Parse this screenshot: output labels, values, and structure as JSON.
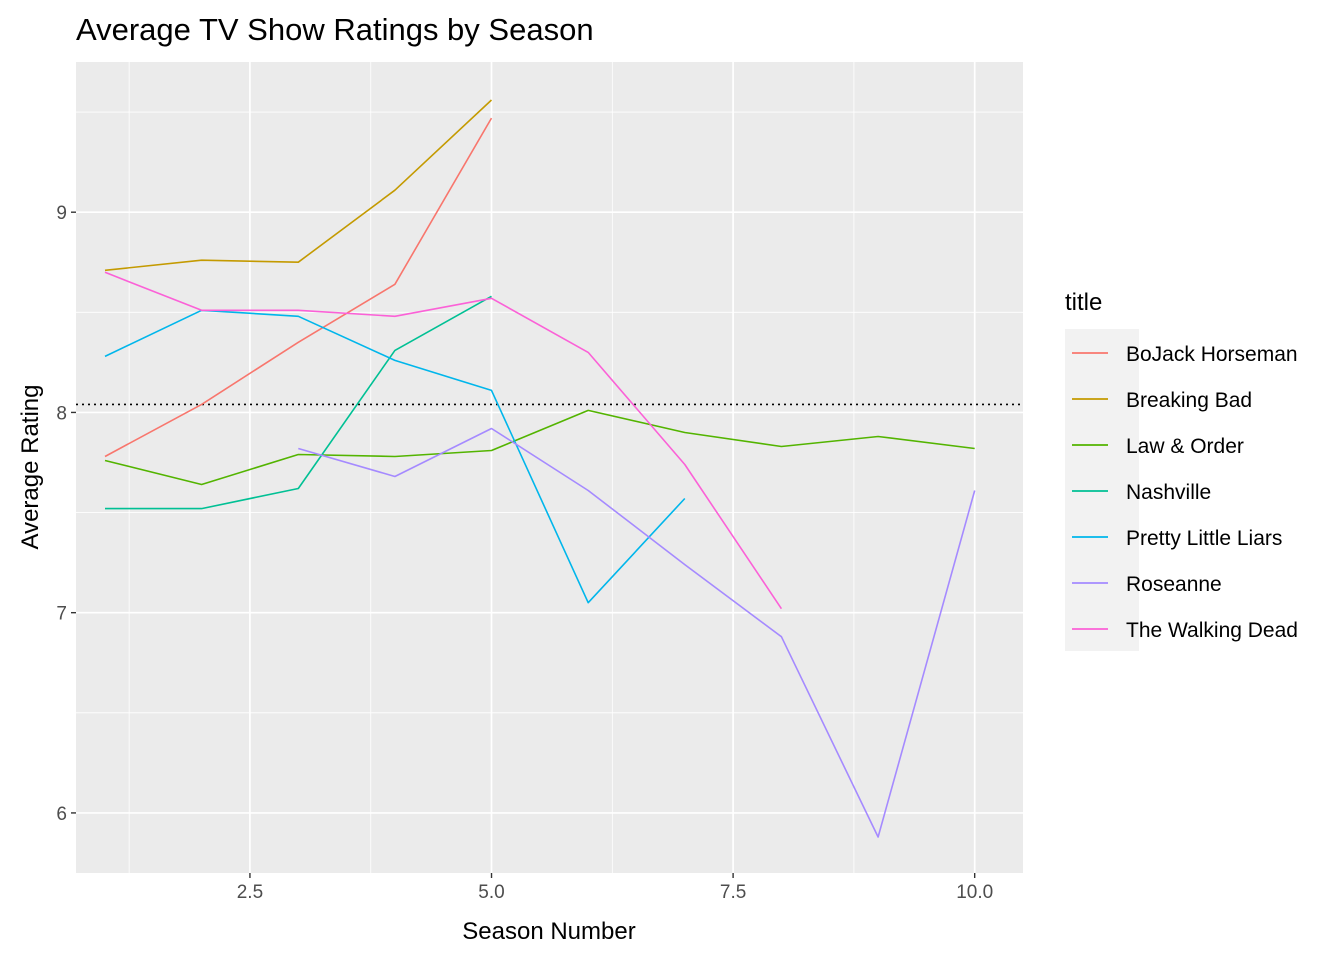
{
  "chart_data": {
    "type": "line",
    "title": "Average TV Show Ratings by Season",
    "xlabel": "Season Number",
    "ylabel": "Average Rating",
    "xlim": [
      0.7,
      10.5
    ],
    "ylim": [
      5.7,
      9.75
    ],
    "x_ticks": [
      2.5,
      5.0,
      7.5,
      10.0
    ],
    "x_tick_labels": [
      "2.5",
      "5.0",
      "7.5",
      "10.0"
    ],
    "y_ticks": [
      6,
      7,
      8,
      9
    ],
    "y_tick_labels": [
      "6",
      "7",
      "8",
      "9"
    ],
    "grid": true,
    "reference_line": {
      "y": 8.04,
      "style": "dotted"
    },
    "legend": {
      "title": "title",
      "position": "right"
    },
    "series": [
      {
        "name": "BoJack Horseman",
        "color": "#F8766D",
        "x": [
          1,
          2,
          3,
          4,
          5
        ],
        "y": [
          7.78,
          8.04,
          8.35,
          8.64,
          9.47
        ]
      },
      {
        "name": "Breaking Bad",
        "color": "#C49A00",
        "x": [
          1,
          2,
          3,
          4,
          5
        ],
        "y": [
          8.71,
          8.76,
          8.75,
          9.11,
          9.56
        ]
      },
      {
        "name": "Law & Order",
        "color": "#53B400",
        "x": [
          1,
          2,
          3,
          4,
          5,
          6,
          7,
          8,
          9,
          10
        ],
        "y": [
          7.76,
          7.64,
          7.79,
          7.78,
          7.81,
          8.01,
          7.9,
          7.83,
          7.88,
          7.82
        ]
      },
      {
        "name": "Nashville",
        "color": "#00C094",
        "x": [
          1,
          2,
          3,
          4,
          5
        ],
        "y": [
          7.52,
          7.52,
          7.62,
          8.31,
          8.58
        ]
      },
      {
        "name": "Pretty Little Liars",
        "color": "#00B6EB",
        "x": [
          1,
          2,
          3,
          4,
          5,
          6,
          7
        ],
        "y": [
          8.28,
          8.51,
          8.48,
          8.26,
          8.11,
          7.05,
          7.57
        ]
      },
      {
        "name": "Roseanne",
        "color": "#A58AFF",
        "x": [
          3,
          4,
          5,
          6,
          7,
          8,
          9,
          10
        ],
        "y": [
          7.82,
          7.68,
          7.92,
          7.61,
          7.24,
          6.88,
          5.88,
          7.61
        ]
      },
      {
        "name": "The Walking Dead",
        "color": "#FB61D7",
        "x": [
          1,
          2,
          3,
          4,
          5,
          6,
          7,
          8
        ],
        "y": [
          8.7,
          8.51,
          8.51,
          8.48,
          8.57,
          8.3,
          7.74,
          7.02
        ]
      }
    ]
  }
}
